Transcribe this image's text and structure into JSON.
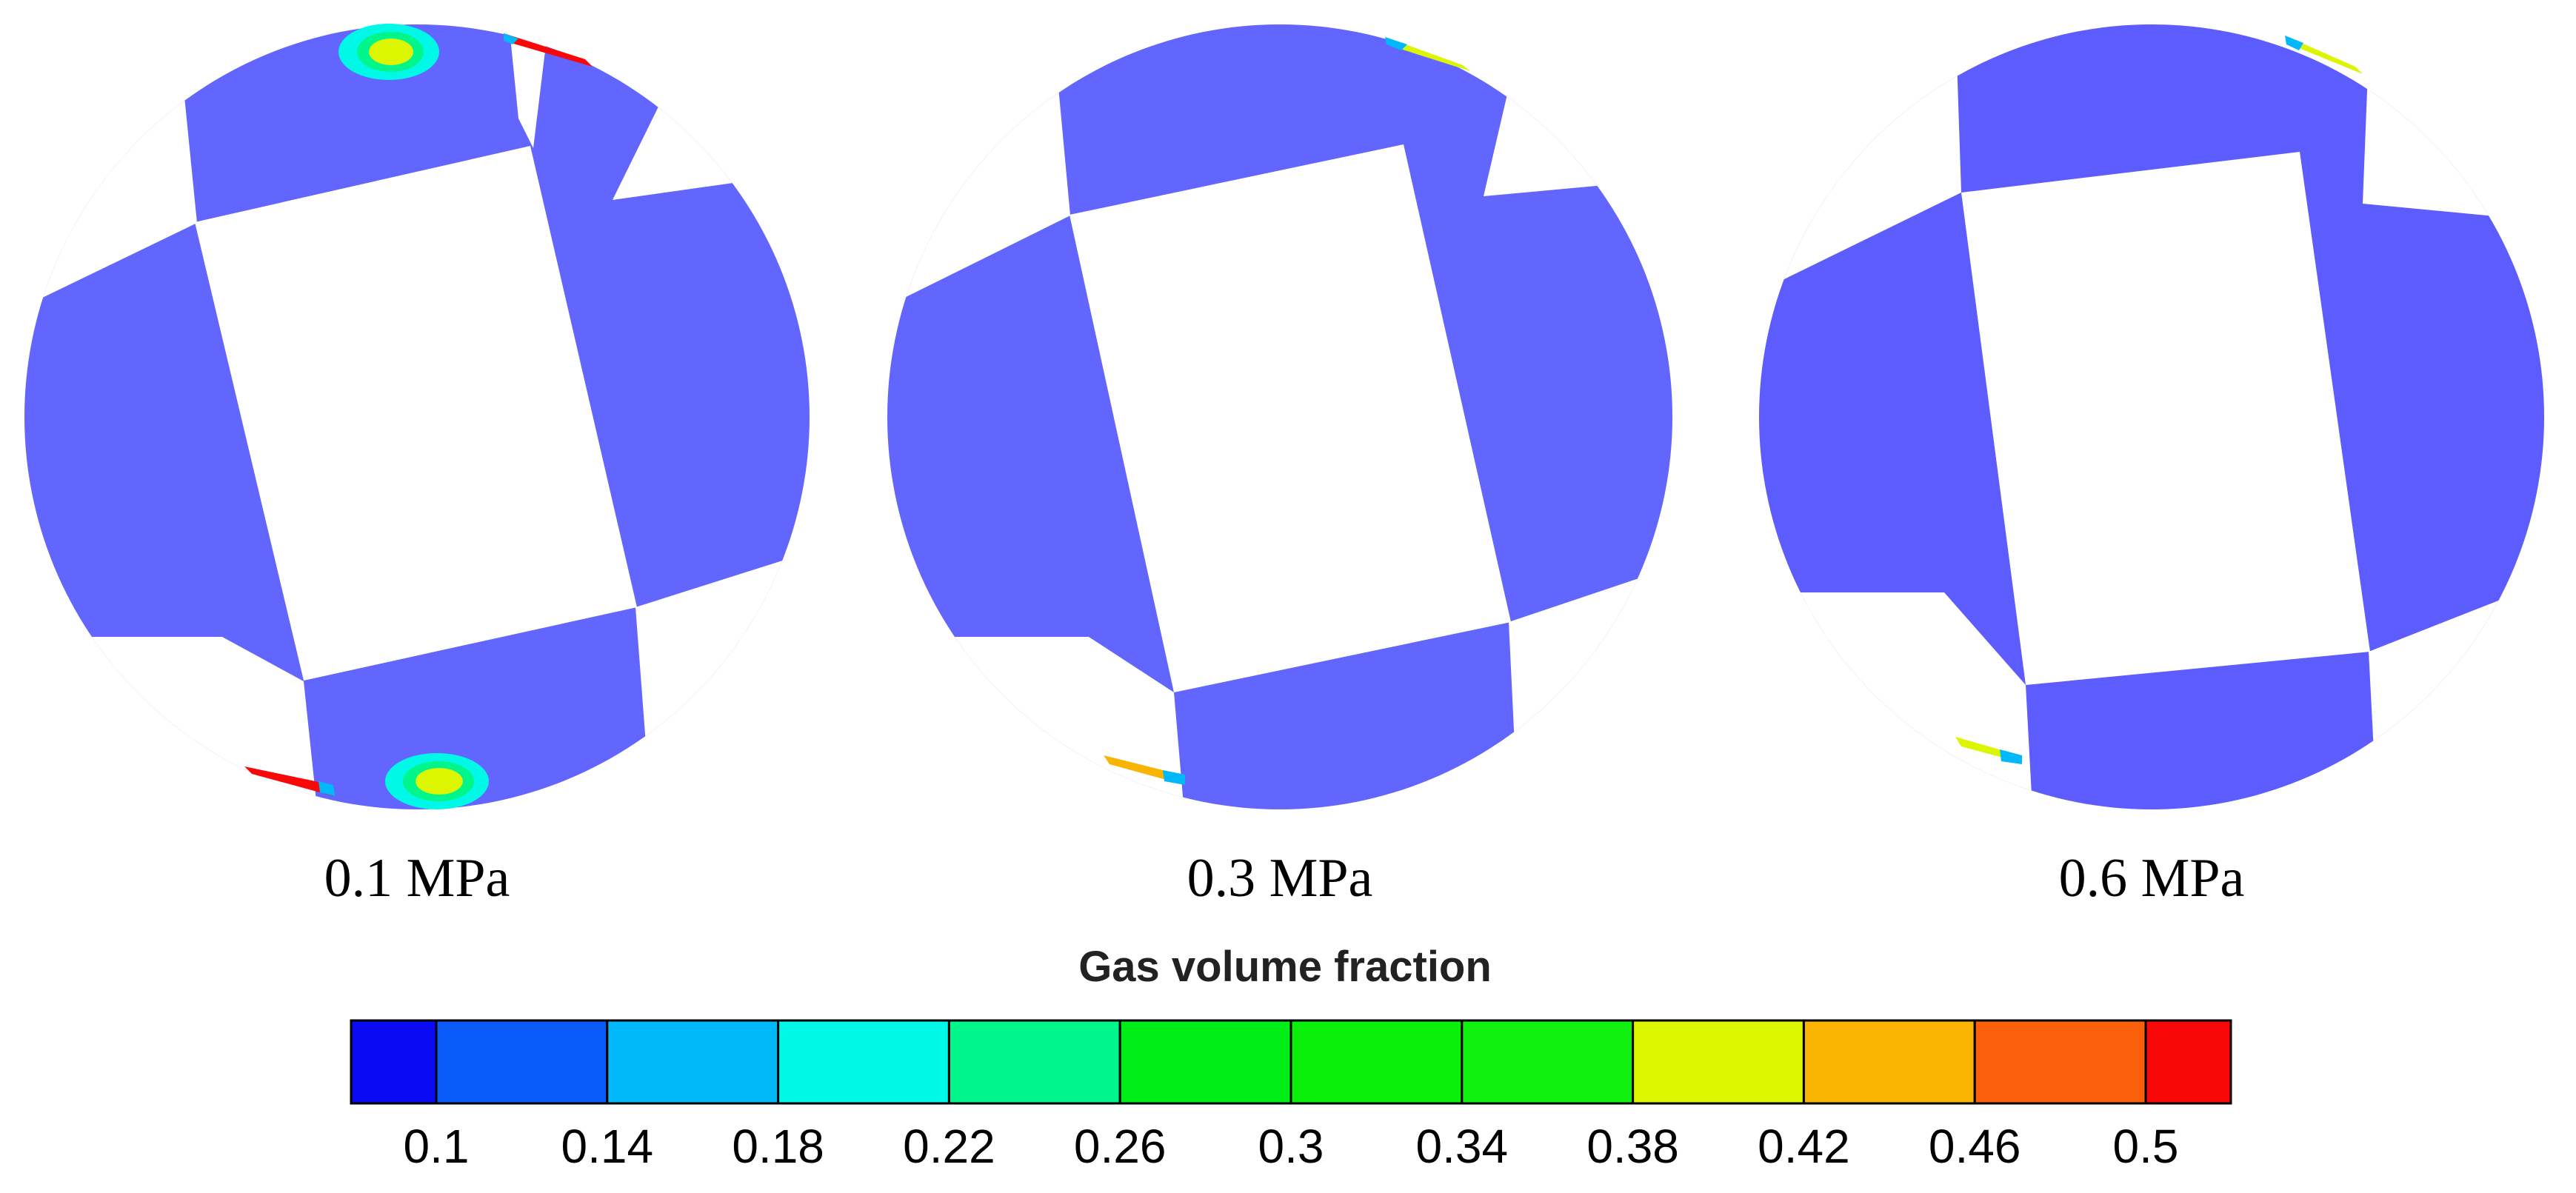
{
  "panels": [
    {
      "label": "0.1 MPa"
    },
    {
      "label": "0.3 MPa"
    },
    {
      "label": "0.6 MPa"
    }
  ],
  "legend": {
    "title": "Gas volume fraction",
    "ticks": [
      "0.1",
      "0.14",
      "0.18",
      "0.22",
      "0.26",
      "0.3",
      "0.34",
      "0.38",
      "0.42",
      "0.46",
      "0.5"
    ],
    "colors": [
      "#0a0af5",
      "#0a5af8",
      "#00b8fa",
      "#00f8e6",
      "#00f58a",
      "#00ee18",
      "#0af00a",
      "#10f010",
      "#dcf500",
      "#f8b400",
      "#fa5f0a",
      "#f80808"
    ]
  },
  "colors": {
    "liquid": "#6266ff",
    "outline": "#000000"
  }
}
